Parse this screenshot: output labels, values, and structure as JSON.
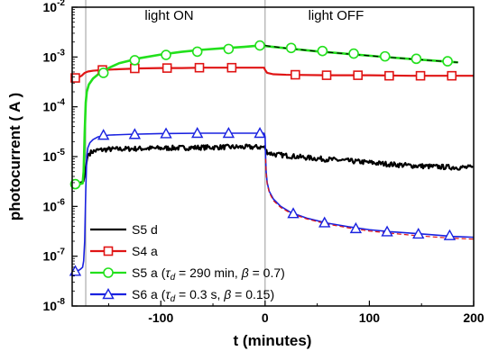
{
  "chart_data": {
    "type": "line",
    "xlabel": "t (minutes)",
    "ylabel": "photocurrent  ( A )",
    "xlim": [
      -185,
      200
    ],
    "ylim": [
      1e-08,
      0.01
    ],
    "yscale": "log",
    "x_ticks": [
      -100,
      0,
      100,
      200
    ],
    "x_tick_labels": [
      "-100",
      "0",
      "100",
      "200"
    ],
    "y_ticks": [
      1e-08,
      1e-07,
      1e-06,
      1e-05,
      0.0001,
      0.001,
      0.01
    ],
    "y_tick_labels": [
      {
        "base": "10",
        "exp": "-8"
      },
      {
        "base": "10",
        "exp": "-7"
      },
      {
        "base": "10",
        "exp": "-6"
      },
      {
        "base": "10",
        "exp": "-5"
      },
      {
        "base": "10",
        "exp": "-4"
      },
      {
        "base": "10",
        "exp": "-3"
      },
      {
        "base": "10",
        "exp": "-2"
      }
    ],
    "annotations": [
      {
        "text": "light ON",
        "x": -92
      },
      {
        "text": "light OFF",
        "x": 68
      }
    ],
    "vlines": [
      -172,
      0
    ],
    "legend_position": "bottom-left",
    "legend": [
      {
        "series": "S5 d",
        "text": "S5 d"
      },
      {
        "series": "S4 a",
        "text": "S4 a"
      },
      {
        "series": "S5 a",
        "prefix": "S5 a (",
        "tau": "τ",
        "tau_sub": "d",
        "mid": " = 290 min, ",
        "beta": "β",
        "suffix": " = 0.7)"
      },
      {
        "series": "S6 a",
        "prefix": "S6 a (",
        "tau": "τ",
        "tau_sub": "d",
        "mid": " = 0.3 s, ",
        "beta": "β",
        "suffix": " = 0.15)"
      }
    ],
    "series": [
      {
        "name": "S5 d",
        "color": "#000000",
        "marker": "none",
        "width": 2.2,
        "noise": 0.05,
        "x": [
          -185,
          -177,
          -174,
          -172,
          -170,
          -166,
          -160,
          -150,
          -120,
          -80,
          -40,
          -10,
          -1,
          0,
          1,
          3,
          6,
          10,
          20,
          40,
          60,
          80,
          100,
          120,
          140,
          160,
          180,
          200
        ],
        "y": [
          3e-06,
          3e-06,
          3.2e-06,
          6e-06,
          1.1e-05,
          1.25e-05,
          1.35e-05,
          1.4e-05,
          1.45e-05,
          1.5e-05,
          1.55e-05,
          1.55e-05,
          1.55e-05,
          1.5e-05,
          1.3e-05,
          1.2e-05,
          1.15e-05,
          1.1e-05,
          1.05e-05,
          9.5e-06,
          8.8e-06,
          8.2e-06,
          7.6e-06,
          7e-06,
          6.6e-06,
          6.3e-06,
          6.1e-06,
          6e-06
        ]
      },
      {
        "name": "S4 a",
        "color": "#e01515",
        "marker": "square",
        "width": 2.2,
        "x": [
          -185,
          -180,
          -176,
          -173,
          -170,
          -165,
          -155,
          -140,
          -120,
          -100,
          -80,
          -60,
          -40,
          -20,
          -1,
          0,
          2,
          8,
          20,
          60,
          100,
          140,
          200
        ],
        "y": [
          0.00037,
          0.00038,
          0.00042,
          0.00048,
          0.00051,
          0.00053,
          0.00055,
          0.00057,
          0.00059,
          0.0006,
          0.0006,
          0.00061,
          0.00061,
          0.00061,
          0.00061,
          0.00055,
          0.00048,
          0.00045,
          0.00044,
          0.00043,
          0.00043,
          0.00042,
          0.00042
        ],
        "markers_x": [
          -182,
          -156,
          -125,
          -94,
          -63,
          -32,
          29,
          59,
          89,
          119,
          149,
          179
        ],
        "markers_y": [
          0.00038,
          0.00055,
          0.00059,
          0.0006,
          0.00061,
          0.00061,
          0.00044,
          0.00043,
          0.00043,
          0.00042,
          0.00042,
          0.00042
        ]
      },
      {
        "name": "S5 a",
        "color": "#22e01c",
        "marker": "circle",
        "width": 2.6,
        "x": [
          -185,
          -178,
          -175,
          -174,
          -173,
          -172,
          -171,
          -169,
          -165,
          -160,
          -150,
          -140,
          -120,
          -100,
          -80,
          -60,
          -40,
          -20,
          -5,
          0,
          1,
          20,
          50,
          80,
          110,
          140,
          170,
          185
        ],
        "y": [
          2.8e-06,
          2.8e-06,
          2.9e-06,
          5e-06,
          3e-05,
          0.00012,
          0.0002,
          0.00028,
          0.00037,
          0.00045,
          0.0006,
          0.00075,
          0.00095,
          0.00112,
          0.00127,
          0.0014,
          0.0015,
          0.0016,
          0.0017,
          0.0017,
          0.00165,
          0.0015,
          0.0013,
          0.00115,
          0.00102,
          0.00091,
          0.00082,
          0.00078
        ],
        "markers_x": [
          -182,
          -155,
          -125,
          -95,
          -65,
          -35,
          -5,
          25,
          55,
          85,
          115,
          145,
          175
        ],
        "markers_y": [
          2.8e-06,
          0.00048,
          0.00086,
          0.0011,
          0.00128,
          0.00145,
          0.0017,
          0.00152,
          0.00132,
          0.00117,
          0.00103,
          0.00092,
          0.00082
        ]
      },
      {
        "name": "S6 a",
        "color": "#1a22e0",
        "marker": "triangle",
        "width": 1.6,
        "x": [
          -185,
          -180,
          -177,
          -175,
          -174,
          -173,
          -172,
          -171,
          -170,
          -168,
          -165,
          -160,
          -150,
          -130,
          -100,
          -60,
          -20,
          -1,
          0,
          0.5,
          1,
          2,
          4,
          8,
          15,
          25,
          40,
          60,
          80,
          100,
          120,
          140,
          160,
          180,
          200
        ],
        "y": [
          5e-08,
          5e-08,
          5.5e-08,
          6e-08,
          8e-08,
          2e-07,
          2e-06,
          1e-05,
          1.5e-05,
          1.9e-05,
          2.2e-05,
          2.5e-05,
          2.7e-05,
          2.8e-05,
          2.9e-05,
          2.95e-05,
          2.95e-05,
          2.95e-05,
          2.5e-05,
          1e-05,
          5e-06,
          3e-06,
          2e-06,
          1.4e-06,
          1e-06,
          7.5e-07,
          5.8e-07,
          4.6e-07,
          3.9e-07,
          3.4e-07,
          3.1e-07,
          2.9e-07,
          2.7e-07,
          2.5e-07,
          2.4e-07
        ],
        "markers_x": [
          -182,
          -155,
          -125,
          -95,
          -65,
          -35,
          -5,
          27,
          57,
          87,
          117,
          147,
          177
        ],
        "markers_y": [
          5e-08,
          2.7e-05,
          2.8e-05,
          2.9e-05,
          2.95e-05,
          2.95e-05,
          2.95e-05,
          7.2e-07,
          4.7e-07,
          3.6e-07,
          3.1e-07,
          2.8e-07,
          2.6e-07
        ]
      },
      {
        "name": "S5 a fit",
        "color": "#000000",
        "marker": "none",
        "width": 1.2,
        "dash": "6,4",
        "x": [
          0,
          20,
          50,
          80,
          110,
          140,
          170,
          185
        ],
        "y": [
          0.0017,
          0.0015,
          0.0013,
          0.00115,
          0.00102,
          0.00091,
          0.00082,
          0.00078
        ]
      },
      {
        "name": "S6 a fit",
        "color": "#e01515",
        "marker": "none",
        "width": 1.2,
        "dash": "5,3",
        "x": [
          0.5,
          1,
          2,
          4,
          8,
          15,
          25,
          40,
          60,
          80,
          100,
          120,
          140,
          160,
          180,
          200
        ],
        "y": [
          9e-06,
          4.6e-06,
          2.8e-06,
          1.9e-06,
          1.3e-06,
          9.5e-07,
          7.2e-07,
          5.6e-07,
          4.4e-07,
          3.7e-07,
          3.2e-07,
          2.9e-07,
          2.65e-07,
          2.45e-07,
          2.3e-07,
          2.2e-07
        ]
      }
    ]
  }
}
